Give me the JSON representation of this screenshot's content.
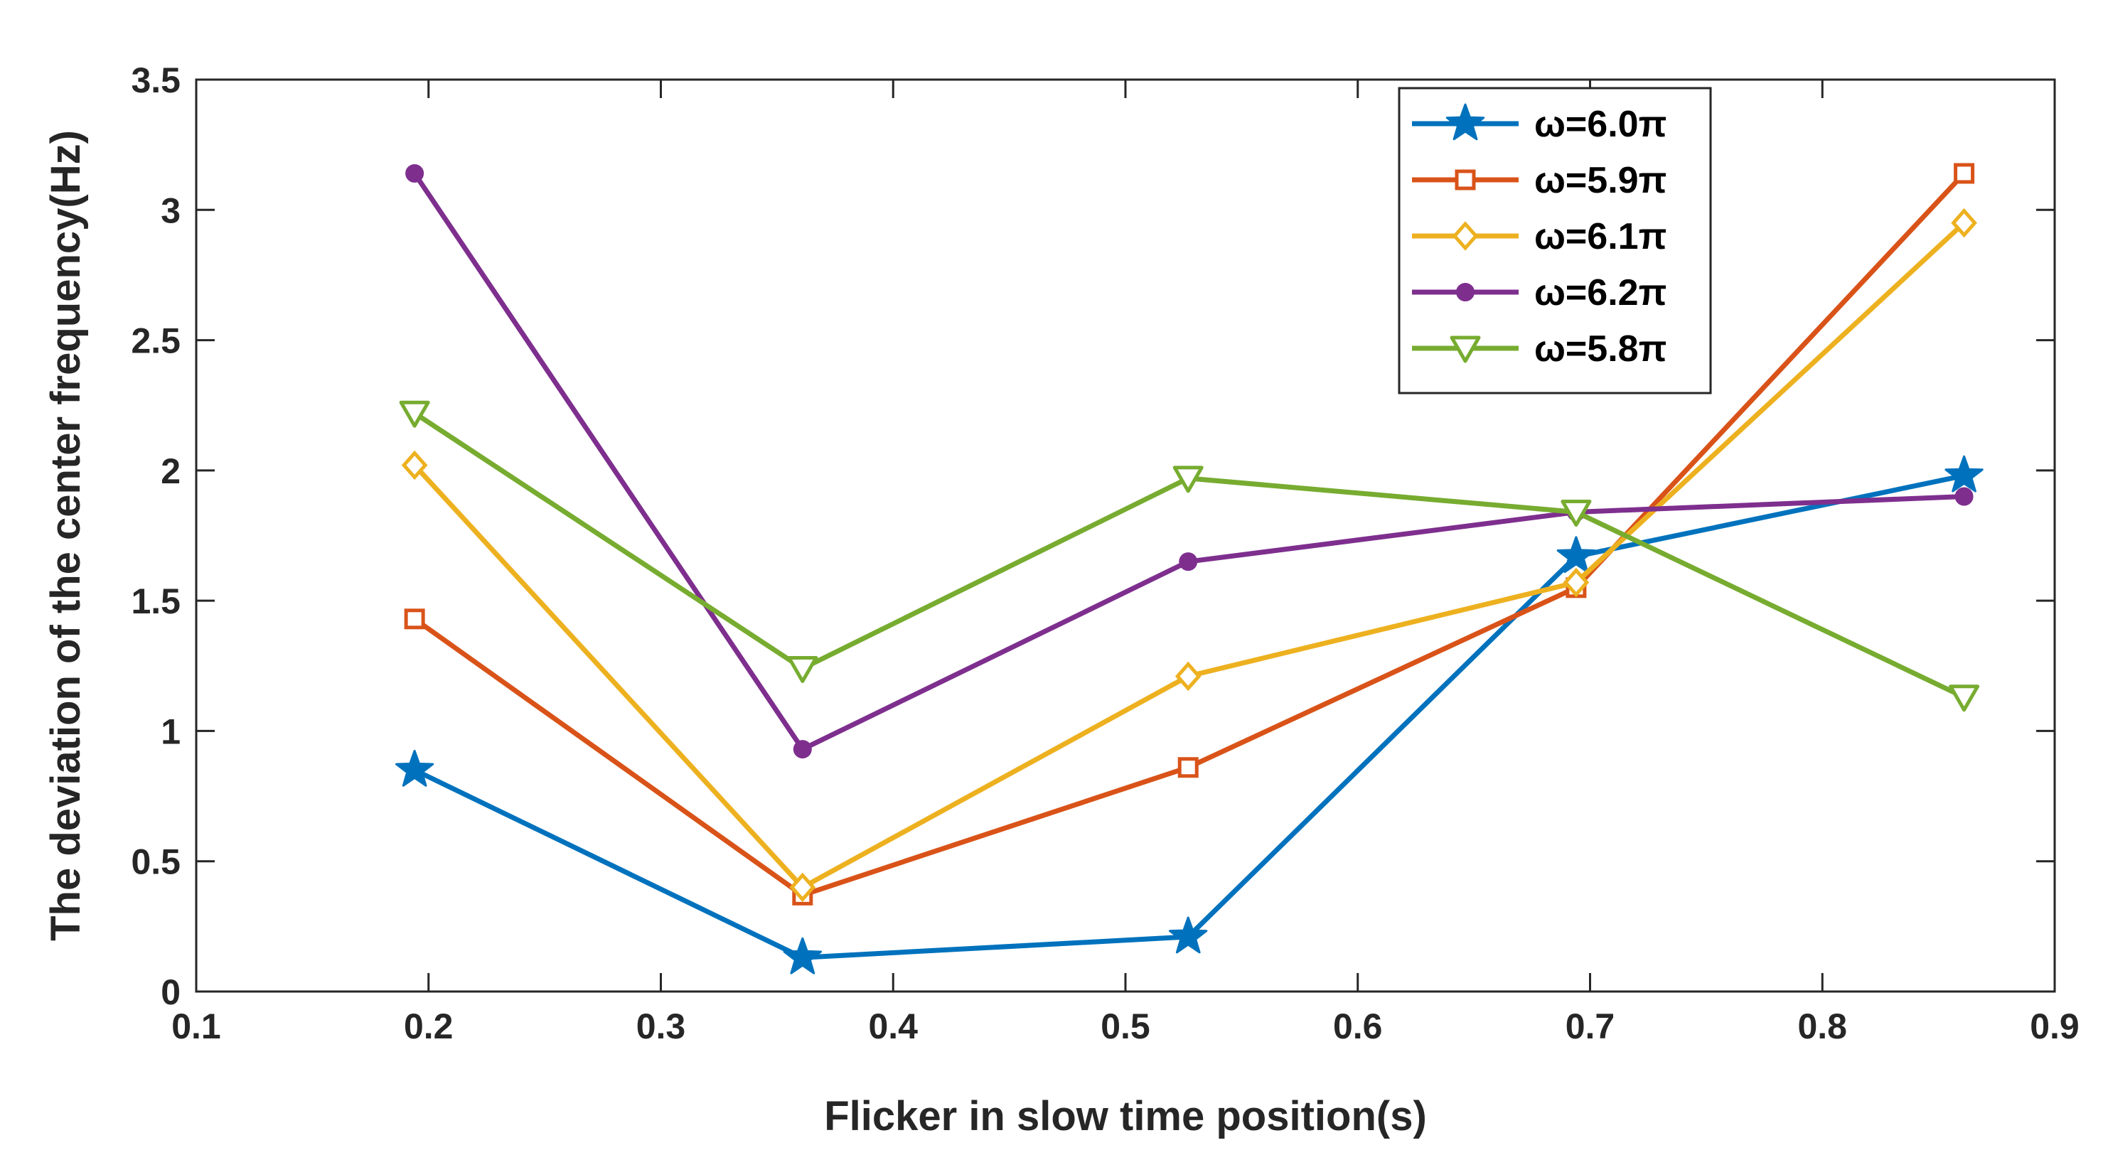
{
  "chart_data": {
    "type": "line",
    "title": "",
    "xlabel": "Flicker in slow time position(s)",
    "ylabel": "The deviation of the center frequency(Hz)",
    "xlim": [
      0.1,
      0.9
    ],
    "ylim": [
      0,
      3.5
    ],
    "xticks": [
      "0.1",
      "0.2",
      "0.3",
      "0.4",
      "0.5",
      "0.6",
      "0.7",
      "0.8",
      "0.9"
    ],
    "yticks": [
      "0",
      "0.5",
      "1",
      "1.5",
      "2",
      "2.5",
      "3",
      "3.5"
    ],
    "grid": false,
    "legend_position": "top-right",
    "x": [
      0.194,
      0.361,
      0.527,
      0.694,
      0.861
    ],
    "series": [
      {
        "name": "ω=6.0π",
        "marker": "star",
        "color": "#0072BD",
        "values": [
          0.85,
          0.13,
          0.21,
          1.67,
          1.98
        ]
      },
      {
        "name": "ω=5.9π",
        "marker": "square",
        "color": "#D95319",
        "values": [
          1.43,
          0.37,
          0.86,
          1.55,
          3.14
        ]
      },
      {
        "name": "ω=6.1π",
        "marker": "diamond",
        "color": "#EDB120",
        "values": [
          2.02,
          0.4,
          1.21,
          1.57,
          2.95
        ]
      },
      {
        "name": "ω=6.2π",
        "marker": "circle",
        "color": "#7E2F8E",
        "values": [
          3.14,
          0.93,
          1.65,
          1.84,
          1.9
        ]
      },
      {
        "name": "ω=5.8π",
        "marker": "triangle-down",
        "color": "#77AC30",
        "values": [
          2.22,
          1.24,
          1.97,
          1.84,
          1.13
        ]
      }
    ]
  }
}
